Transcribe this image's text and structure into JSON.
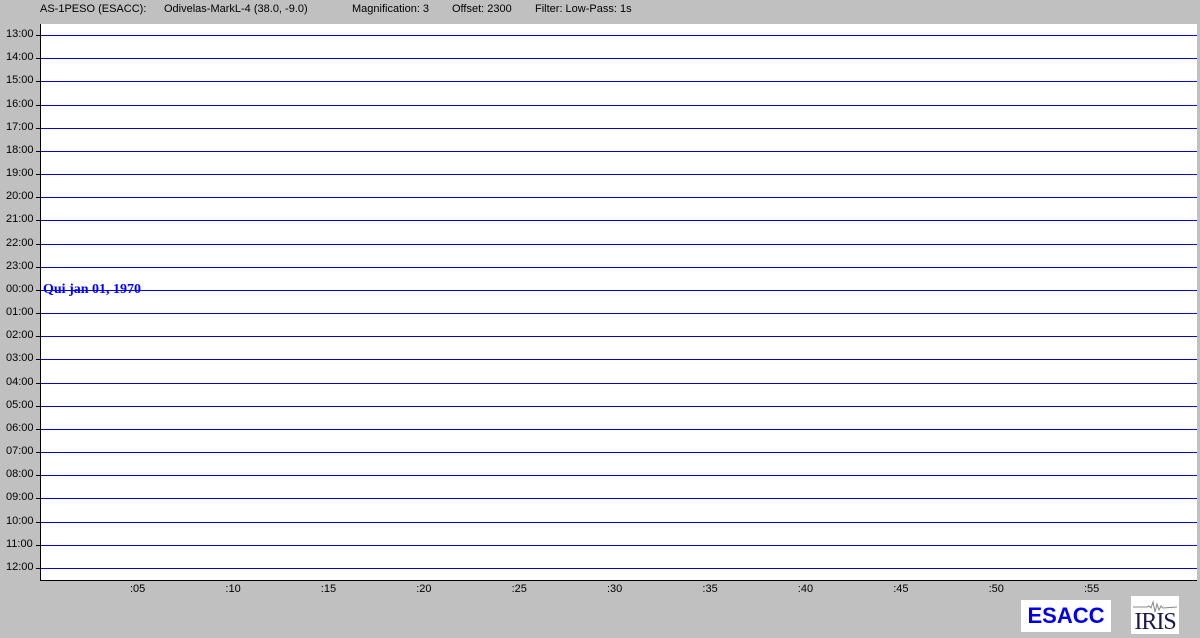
{
  "header": {
    "station": "AS-1PESO (ESACC):",
    "location": "Odivelas-MarkL-4 (38.0, -9.0)",
    "magnification": "Magnification: 3",
    "offset": "Offset: 2300",
    "filter": "Filter: Low-Pass: 1s"
  },
  "hours": [
    "13:00",
    "14:00",
    "15:00",
    "16:00",
    "17:00",
    "18:00",
    "19:00",
    "20:00",
    "21:00",
    "22:00",
    "23:00",
    "00:00",
    "01:00",
    "02:00",
    "03:00",
    "04:00",
    "05:00",
    "06:00",
    "07:00",
    "08:00",
    "09:00",
    "10:00",
    "11:00",
    "12:00"
  ],
  "minute_ticks": [
    ":05",
    ":10",
    ":15",
    ":20",
    ":25",
    ":30",
    ":35",
    ":40",
    ":45",
    ":50",
    ":55"
  ],
  "date_label": "Qui jan 01, 1970",
  "logos": {
    "esacc": "ESACC",
    "iris": "IRIS"
  },
  "colors": {
    "trace": "#0000d8",
    "date": "#0000ff",
    "background": "#c0c0c0"
  }
}
